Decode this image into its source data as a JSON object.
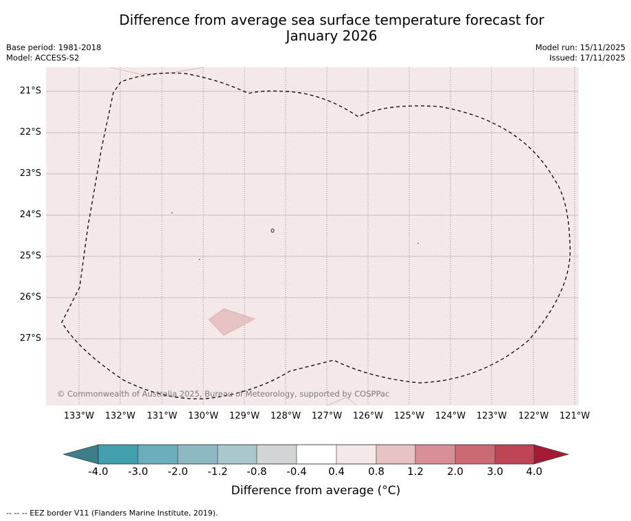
{
  "header": {
    "title_line1": "Difference from average sea surface temperature forecast for",
    "title_line2": "January 2026",
    "base_period": "Base period: 1981-2018",
    "model": "Model: ACCESS-S2",
    "model_run": "Model run: 15/11/2025",
    "issued": "Issued: 17/11/2025"
  },
  "map": {
    "latitude_labels": [
      "21°S",
      "22°S",
      "23°S",
      "24°S",
      "25°S",
      "26°S",
      "27°S"
    ],
    "longitude_labels": [
      "133°W",
      "132°W",
      "131°W",
      "130°W",
      "129°W",
      "128°W",
      "127°W",
      "126°W",
      "125°W",
      "124°W",
      "123°W",
      "122°W",
      "121°W"
    ],
    "copyright": "© Commonwealth of Australia 2025, Bureau of Meteorology, supported by COSPPac",
    "background_anomaly_range": "0.4 to 0.8",
    "ocean_fill_color": "#f5e8e8",
    "patch_color": "#e6c3c2",
    "eez_line_color": "#000000"
  },
  "colorbar": {
    "title": "Difference from average (°C)",
    "tick_labels": [
      "-4.0",
      "-3.0",
      "-2.0",
      "-1.2",
      "-0.8",
      "-0.4",
      "0.4",
      "0.8",
      "1.2",
      "2.0",
      "3.0",
      "4.0"
    ],
    "under_color": "#3e7e88",
    "over_color": "#a51a35",
    "colors": [
      "#43a0b0",
      "#6aaebb",
      "#8cb9c3",
      "#a9c7cc",
      "#d2d5d6",
      "#ffffff",
      "#f5e8e8",
      "#e6c3c2",
      "#d78e96",
      "#cb6a73",
      "#bd4554"
    ]
  },
  "footer": {
    "legend_text": "--  --  -- EEZ border V11 (Flanders Marine Institute, 2019)."
  }
}
